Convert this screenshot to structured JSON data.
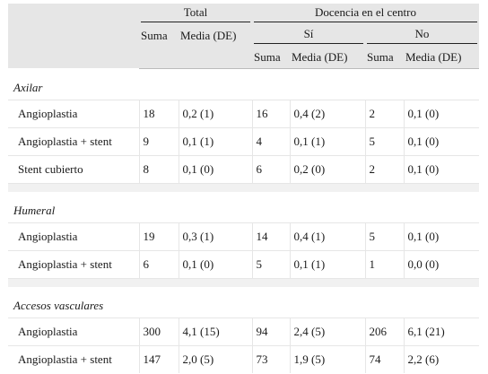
{
  "header": {
    "total": "Total",
    "docencia": "Docencia en el centro",
    "si": "Sí",
    "no": "No",
    "suma": "Suma",
    "media": "Media (DE)"
  },
  "sections": [
    {
      "title": "Axilar",
      "rows": [
        {
          "label": "Angioplastia",
          "total_suma": "18",
          "total_media": "0,2 (1)",
          "si_suma": "16",
          "si_media": "0,4 (2)",
          "no_suma": "2",
          "no_media": "0,1 (0)"
        },
        {
          "label": "Angioplastia + stent",
          "total_suma": "9",
          "total_media": "0,1 (1)",
          "si_suma": "4",
          "si_media": "0,1 (1)",
          "no_suma": "5",
          "no_media": "0,1 (0)"
        },
        {
          "label": "Stent cubierto",
          "total_suma": "8",
          "total_media": "0,1 (0)",
          "si_suma": "6",
          "si_media": "0,2 (0)",
          "no_suma": "2",
          "no_media": "0,1 (0)"
        }
      ]
    },
    {
      "title": "Humeral",
      "rows": [
        {
          "label": "Angioplastia",
          "total_suma": "19",
          "total_media": "0,3 (1)",
          "si_suma": "14",
          "si_media": "0,4 (1)",
          "no_suma": "5",
          "no_media": "0,1 (0)"
        },
        {
          "label": "Angioplastia + stent",
          "total_suma": "6",
          "total_media": "0,1 (0)",
          "si_suma": "5",
          "si_media": "0,1 (1)",
          "no_suma": "1",
          "no_media": "0,0 (0)"
        }
      ]
    },
    {
      "title": "Accesos vasculares",
      "rows": [
        {
          "label": "Angioplastia",
          "total_suma": "300",
          "total_media": "4,1 (15)",
          "si_suma": "94",
          "si_media": "2,4 (5)",
          "no_suma": "206",
          "no_media": "6,1 (21)"
        },
        {
          "label": "Angioplastia + stent",
          "total_suma": "147",
          "total_media": "2,0 (5)",
          "si_suma": "73",
          "si_media": "1,9 (5)",
          "no_suma": "74",
          "no_media": "2,2 (6)"
        }
      ]
    }
  ]
}
